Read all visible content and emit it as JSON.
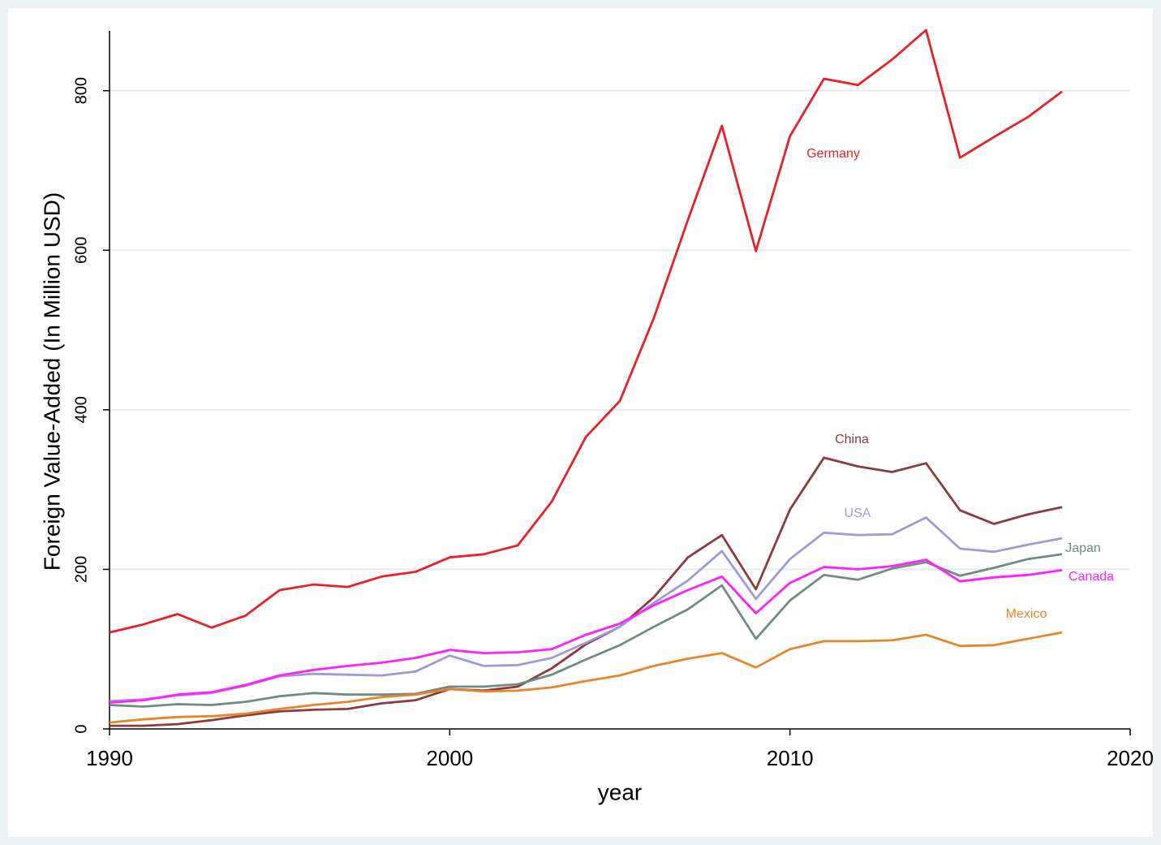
{
  "chart_data": {
    "type": "line",
    "x_label": "year",
    "y_label": "Foreign Value-Added (In Million USD)",
    "x": [
      1990,
      1991,
      1992,
      1993,
      1994,
      1995,
      1996,
      1997,
      1998,
      1999,
      2000,
      2001,
      2002,
      2003,
      2004,
      2005,
      2006,
      2007,
      2008,
      2009,
      2010,
      2011,
      2012,
      2013,
      2014,
      2015,
      2016,
      2017,
      2018
    ],
    "xlim": [
      1990,
      2020
    ],
    "xticks": [
      1990,
      2000,
      2010,
      2020
    ],
    "ylim": [
      0,
      875
    ],
    "yticks": [
      0,
      200,
      400,
      600,
      800
    ],
    "grid": true,
    "series": [
      {
        "name": "Germany",
        "color": "#e8202a",
        "values": [
          121,
          131,
          144,
          127,
          142,
          174,
          181,
          178,
          191,
          197,
          215,
          219,
          230,
          285,
          366,
          411,
          515,
          638,
          756,
          599,
          743,
          815,
          807,
          839,
          876,
          716,
          742,
          767,
          799
        ]
      },
      {
        "name": "China",
        "color": "#8b3a3e",
        "values": [
          4,
          4,
          6,
          11,
          17,
          22,
          24,
          25,
          32,
          36,
          50,
          48,
          53,
          76,
          106,
          128,
          165,
          215,
          243,
          175,
          275,
          340,
          329,
          322,
          333,
          274,
          257,
          269,
          278
        ]
      },
      {
        "name": "USA",
        "color": "#9f9bd6",
        "values": [
          35,
          37,
          42,
          45,
          54,
          66,
          69,
          68,
          67,
          72,
          92,
          79,
          80,
          89,
          108,
          128,
          158,
          186,
          223,
          163,
          213,
          246,
          243,
          244,
          265,
          226,
          222,
          231,
          239
        ]
      },
      {
        "name": "Japan",
        "color": "#6f8c80",
        "values": [
          30,
          28,
          31,
          30,
          34,
          41,
          45,
          43,
          43,
          44,
          53,
          53,
          56,
          68,
          87,
          105,
          128,
          150,
          180,
          113,
          161,
          193,
          187,
          201,
          209,
          192,
          202,
          213,
          219
        ]
      },
      {
        "name": "Canada",
        "color": "#ff1fff",
        "values": [
          33,
          36,
          43,
          46,
          55,
          67,
          74,
          79,
          83,
          89,
          99,
          95,
          96,
          100,
          118,
          132,
          155,
          174,
          191,
          145,
          183,
          203,
          200,
          204,
          212,
          185,
          190,
          193,
          199
        ]
      },
      {
        "name": "Mexico",
        "color": "#e6862a",
        "values": [
          8,
          12,
          15,
          16,
          19,
          25,
          30,
          34,
          40,
          43,
          50,
          47,
          48,
          52,
          60,
          67,
          79,
          88,
          95,
          77,
          100,
          110,
          110,
          111,
          118,
          104,
          105,
          113,
          121
        ]
      }
    ]
  }
}
